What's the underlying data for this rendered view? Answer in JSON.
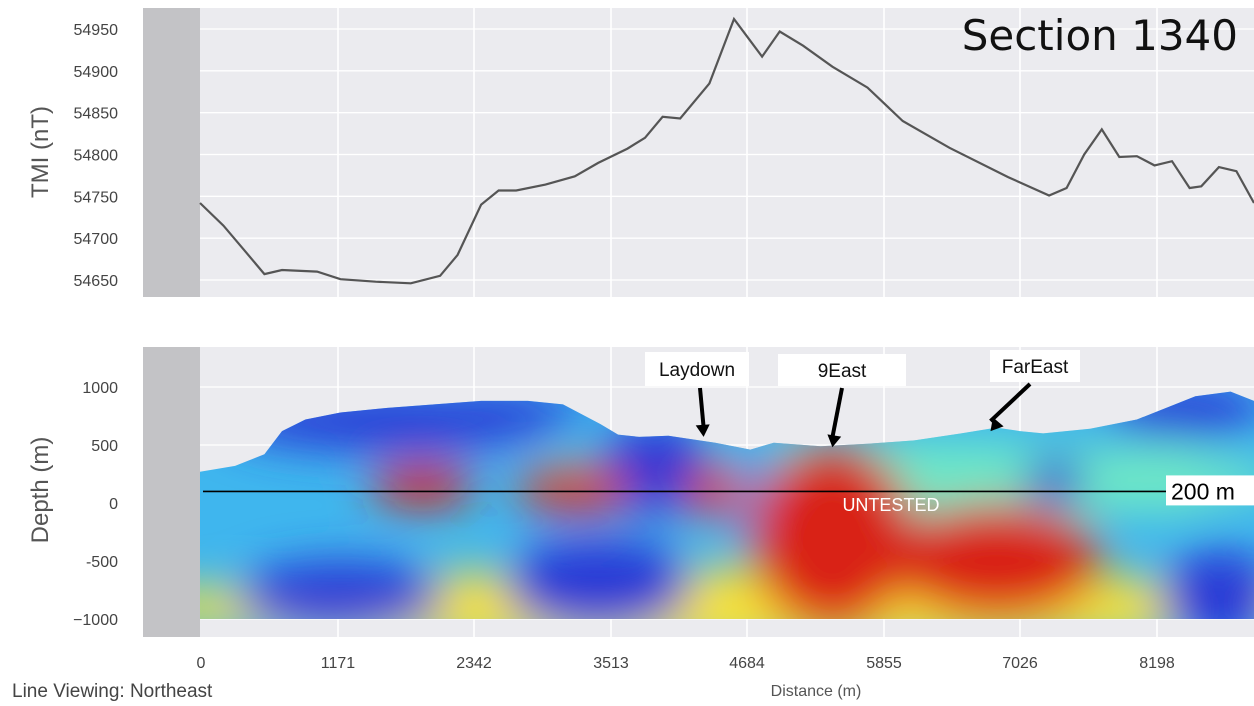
{
  "chart_data": [
    {
      "type": "line",
      "title": "Section 1340",
      "ylabel": "TMI (nT)",
      "ylim": [
        54640,
        54970
      ],
      "xlim": [
        0,
        9000
      ],
      "grid": true,
      "y_ticks": [
        "54650",
        "54700",
        "54750",
        "54800",
        "54850",
        "54900",
        "54950"
      ],
      "x": [
        0,
        200,
        400,
        550,
        700,
        1000,
        1200,
        1500,
        1800,
        2050,
        2200,
        2400,
        2550,
        2700,
        2950,
        3200,
        3400,
        3650,
        3800,
        3950,
        4100,
        4350,
        4560,
        4650,
        4800,
        4950,
        5150,
        5400,
        5700,
        6000,
        6400,
        6900,
        7250,
        7400,
        7550,
        7700,
        7850,
        8000,
        8150,
        8300,
        8450,
        8550,
        8700,
        8850,
        9000
      ],
      "values": [
        54742,
        54715,
        54682,
        54657,
        54662,
        54660,
        54651,
        54648,
        54646,
        54655,
        54680,
        54740,
        54757,
        54757,
        54764,
        54774,
        54790,
        54807,
        54820,
        54845,
        54843,
        54885,
        54962,
        54945,
        54917,
        54947,
        54930,
        54905,
        54880,
        54840,
        54808,
        54773,
        54751,
        54760,
        54800,
        54830,
        54797,
        54798,
        54787,
        54792,
        54760,
        54762,
        54785,
        54780,
        54742
      ]
    },
    {
      "type": "heatmap",
      "ylabel": "Depth (m)",
      "xlabel": "Distance (m)",
      "ylim": [
        -1100,
        1300
      ],
      "xlim": [
        0,
        9000
      ],
      "grid": true,
      "y_ticks": [
        "1000",
        "500",
        "0",
        "-500",
        "−1000"
      ],
      "x_ticks": [
        "0",
        "1171",
        "2342",
        "3513",
        "4684",
        "5855",
        "7026",
        "8198"
      ],
      "colormap": [
        "#2b3bd6",
        "#3aa3f2",
        "#6ee8c6",
        "#f7e23a",
        "#f08a22",
        "#d92418"
      ],
      "surface_x": [
        0,
        300,
        550,
        700,
        900,
        1200,
        1600,
        2000,
        2400,
        2800,
        3100,
        3420,
        3570,
        3750,
        4000,
        4400,
        4700,
        4900,
        5300,
        5700,
        6100,
        6500,
        6800,
        7000,
        7200,
        7600,
        8000,
        8500,
        8800,
        9000
      ],
      "surface_y": [
        270,
        320,
        420,
        620,
        720,
        780,
        820,
        850,
        880,
        880,
        850,
        680,
        590,
        570,
        580,
        520,
        460,
        520,
        490,
        510,
        540,
        600,
        650,
        620,
        600,
        640,
        720,
        920,
        960,
        880
      ],
      "blobs": [
        {
          "x": 1600,
          "y": 700,
          "rx": 1400,
          "ry": 250,
          "c": 0
        },
        {
          "x": 2500,
          "y": 800,
          "rx": 800,
          "ry": 150,
          "c": 0
        },
        {
          "x": 8400,
          "y": 800,
          "rx": 700,
          "ry": 220,
          "c": 0
        },
        {
          "x": 3900,
          "y": 300,
          "rx": 500,
          "ry": 400,
          "c": 0
        },
        {
          "x": 4700,
          "y": 100,
          "rx": 250,
          "ry": 500,
          "c": 1
        },
        {
          "x": 1900,
          "y": 150,
          "rx": 450,
          "ry": 180,
          "c": 5
        },
        {
          "x": 3200,
          "y": 120,
          "rx": 500,
          "ry": 200,
          "c": 5
        },
        {
          "x": 4400,
          "y": 100,
          "rx": 260,
          "ry": 220,
          "c": 5
        },
        {
          "x": 5400,
          "y": -300,
          "rx": 700,
          "ry": 800,
          "c": 5
        },
        {
          "x": 6800,
          "y": -500,
          "rx": 900,
          "ry": 500,
          "c": 5
        },
        {
          "x": 7300,
          "y": 200,
          "rx": 250,
          "ry": 200,
          "c": 0
        },
        {
          "x": 8200,
          "y": 200,
          "rx": 600,
          "ry": 300,
          "c": 2
        },
        {
          "x": 8700,
          "y": -800,
          "rx": 500,
          "ry": 400,
          "c": 0
        },
        {
          "x": 3400,
          "y": -700,
          "rx": 800,
          "ry": 400,
          "c": 0
        },
        {
          "x": 1200,
          "y": -800,
          "rx": 900,
          "ry": 300,
          "c": 0
        }
      ],
      "annotations": [
        {
          "label": "Laydown",
          "x": 4300,
          "y": 570
        },
        {
          "label": "9East",
          "x": 5400,
          "y": 480
        },
        {
          "label": "FarEast",
          "x": 6750,
          "y": 620
        }
      ],
      "reference_line": {
        "y": 100,
        "label": "200 m"
      },
      "region_label": "UNTESTED",
      "footer": "Line Viewing: Northeast"
    }
  ]
}
